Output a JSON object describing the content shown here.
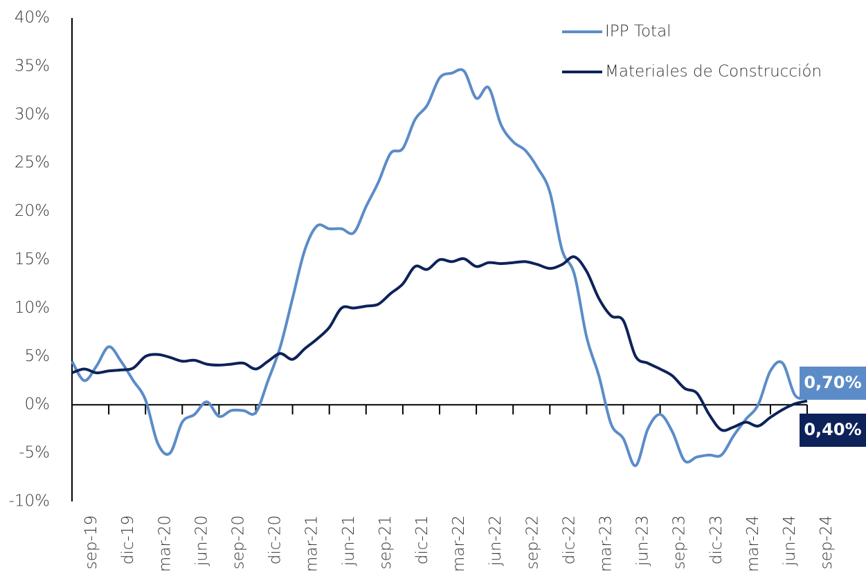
{
  "chart_data": {
    "type": "line",
    "categories": [
      "sep-19",
      null,
      null,
      "dic-19",
      null,
      null,
      "mar-20",
      null,
      null,
      "jun-20",
      null,
      null,
      "sep-20",
      null,
      null,
      "dic-20",
      null,
      null,
      "mar-21",
      null,
      null,
      "jun-21",
      null,
      null,
      "sep-21",
      null,
      null,
      "dic-21",
      null,
      null,
      "mar-22",
      null,
      null,
      "jun-22",
      null,
      null,
      "sep-22",
      null,
      null,
      "dic-22",
      null,
      null,
      "mar-23",
      null,
      null,
      "jun-23",
      null,
      null,
      "sep-23",
      null,
      null,
      "dic-23",
      null,
      null,
      "mar-24",
      null,
      null,
      "jun-24",
      null,
      null,
      "sep-24"
    ],
    "series": [
      {
        "name": "IPP Total",
        "color": "#5b8cc8",
        "values": [
          4.5,
          2.5,
          4.0,
          6.0,
          4.5,
          2.5,
          0.5,
          -4,
          -5,
          -1.8,
          -1,
          0.3,
          -1.2,
          -0.6,
          -0.6,
          -0.8,
          2.5,
          6,
          11,
          16,
          18.5,
          18.2,
          18.2,
          17.8,
          20.5,
          23,
          26,
          26.5,
          29.5,
          31,
          33.8,
          34.3,
          34.5,
          31.7,
          32.8,
          29,
          27.2,
          26.3,
          24.5,
          22,
          16,
          13.5,
          7,
          3,
          -2,
          -3.5,
          -6.3,
          -2.5,
          -1,
          -2.8,
          -5.8,
          -5.4,
          -5.2,
          -5.2,
          -3.2,
          -1.5,
          0,
          3.5,
          4.3,
          1,
          0.7
        ],
        "value_labels": [
          null,
          null,
          null,
          null,
          null,
          null,
          null,
          null,
          null,
          null,
          null,
          null,
          null,
          null,
          null,
          null,
          null,
          null,
          null,
          null,
          null,
          null,
          null,
          null,
          null,
          null,
          null,
          null,
          null,
          null,
          null,
          null,
          null,
          null,
          null,
          null,
          null,
          null,
          null,
          null,
          null,
          null,
          null,
          null,
          null,
          null,
          null,
          null,
          null,
          null,
          null,
          null,
          null,
          null,
          null,
          null,
          null,
          null,
          null,
          null,
          "0,70%"
        ]
      },
      {
        "name": "Materiales de Construcción",
        "color": "#0d2259",
        "values": [
          3.3,
          3.7,
          3.3,
          3.5,
          3.6,
          3.8,
          5.0,
          5.2,
          4.9,
          4.5,
          4.6,
          4.2,
          4.1,
          4.2,
          4.3,
          3.7,
          4.5,
          5.3,
          4.7,
          5.8,
          6.8,
          8.0,
          10.0,
          10.0,
          10.2,
          10.4,
          11.5,
          12.5,
          14.3,
          14.0,
          15.0,
          14.8,
          15.1,
          14.3,
          14.7,
          14.6,
          14.7,
          14.8,
          14.5,
          14.1,
          14.5,
          15.3,
          13.8,
          11.0,
          9.2,
          8.7,
          5.0,
          4.3,
          3.7,
          3.0,
          1.7,
          1.2,
          -1.0,
          -2.6,
          -2.3,
          -1.8,
          -2.2,
          -1.3,
          -0.5,
          0.1,
          0.4
        ],
        "value_labels": [
          null,
          null,
          null,
          null,
          null,
          null,
          null,
          null,
          null,
          null,
          null,
          null,
          null,
          null,
          null,
          null,
          null,
          null,
          null,
          null,
          null,
          null,
          null,
          null,
          null,
          null,
          null,
          null,
          null,
          null,
          null,
          null,
          null,
          null,
          null,
          null,
          null,
          null,
          null,
          null,
          null,
          null,
          null,
          null,
          null,
          null,
          null,
          null,
          null,
          null,
          null,
          null,
          null,
          null,
          null,
          null,
          null,
          null,
          null,
          null,
          "0,40%"
        ]
      }
    ],
    "ylim": [
      -10,
      40
    ],
    "yticks": [
      {
        "value": -10,
        "label": "-10%"
      },
      {
        "value": -5,
        "label": "-5%"
      },
      {
        "value": 0,
        "label": "0%"
      },
      {
        "value": 5,
        "label": "5%"
      },
      {
        "value": 10,
        "label": "10%"
      },
      {
        "value": 15,
        "label": "15%"
      },
      {
        "value": 20,
        "label": "20%"
      },
      {
        "value": 25,
        "label": "25%"
      },
      {
        "value": 30,
        "label": "30%"
      },
      {
        "value": 35,
        "label": "35%"
      },
      {
        "value": 40,
        "label": "40%"
      }
    ],
    "grid": false,
    "legend": "top-right"
  }
}
